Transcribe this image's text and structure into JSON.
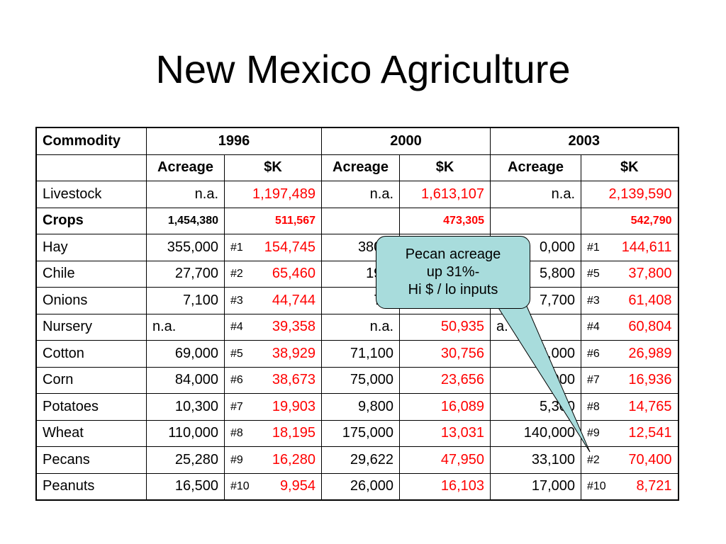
{
  "slide": {
    "title": "New Mexico Agriculture"
  },
  "table": {
    "headers": {
      "commodity": "Commodity",
      "years": [
        "1996",
        "2000",
        "2003"
      ],
      "acreage": "Acreage",
      "value": "$K"
    },
    "summary_rows": [
      {
        "name": "Livestock",
        "a1996": "n.a.",
        "k1996": "1,197,489",
        "a2000": "n.a.",
        "k2000": "1,613,107",
        "a2003": "n.a.",
        "k2003": "2,139,590"
      },
      {
        "name": "Crops",
        "a1996": "1,454,380",
        "k1996": "511,567",
        "a2000": "",
        "k2000": "473,305",
        "a2003": "",
        "k2003": "542,790"
      }
    ],
    "rows": [
      {
        "name": "Hay",
        "a1996": "355,000",
        "r1996": "#1",
        "k1996": "154,745",
        "a2000": "380,0",
        "k2000": "",
        "a2003": "0,000",
        "r2003": "#1",
        "k2003": "144,611"
      },
      {
        "name": "Chile",
        "a1996": "27,700",
        "r1996": "#2",
        "k1996": "65,460",
        "a2000": "19,0",
        "k2000": "",
        "a2003": "5,800",
        "r2003": "#5",
        "k2003": "37,800"
      },
      {
        "name": "Onions",
        "a1996": "7,100",
        "r1996": "#3",
        "k1996": "44,744",
        "a2000": "7,7",
        "k2000": "",
        "a2003": "7,700",
        "r2003": "#3",
        "k2003": "61,408"
      },
      {
        "name": "Nursery",
        "a1996": "n.a.",
        "r1996": "#4",
        "k1996": "39,358",
        "a2000": "n.a.",
        "k2000": "50,935",
        "a2003": "a.",
        "r2003": "#4",
        "k2003": "60,804"
      },
      {
        "name": "Cotton",
        "a1996": "69,000",
        "r1996": "#5",
        "k1996": "38,929",
        "a2000": "71,100",
        "k2000": "30,756",
        "a2003": "4,000",
        "r2003": "#6",
        "k2003": "26,989"
      },
      {
        "name": "Corn",
        "a1996": "84,000",
        "r1996": "#6",
        "k1996": "38,673",
        "a2000": "75,000",
        "k2000": "23,656",
        "a2003": "000",
        "r2003": "#7",
        "k2003": "16,936"
      },
      {
        "name": "Potatoes",
        "a1996": "10,300",
        "r1996": "#7",
        "k1996": "19,903",
        "a2000": "9,800",
        "k2000": "16,089",
        "a2003": "5,300",
        "r2003": "#8",
        "k2003": "14,765"
      },
      {
        "name": "Wheat",
        "a1996": "110,000",
        "r1996": "#8",
        "k1996": "18,195",
        "a2000": "175,000",
        "k2000": "13,031",
        "a2003": "140,000",
        "r2003": "#9",
        "k2003": "12,541"
      },
      {
        "name": "Pecans",
        "a1996": "25,280",
        "r1996": "#9",
        "k1996": "16,280",
        "a2000": "29,622",
        "k2000": "47,950",
        "a2003": "33,100",
        "r2003": "#2",
        "k2003": "70,400"
      },
      {
        "name": "Peanuts",
        "a1996": "16,500",
        "r1996": "#10",
        "k1996": "9,954",
        "a2000": "26,000",
        "k2000": "16,103",
        "a2003": "17,000",
        "r2003": "#10",
        "k2003": "8,721"
      }
    ]
  },
  "callout": {
    "line1": "Pecan acreage",
    "line2": "up 31%-",
    "line3": "Hi $ / lo inputs",
    "fill_color": "#a8dcdc"
  },
  "colors": {
    "value_text": "#ff0000"
  }
}
